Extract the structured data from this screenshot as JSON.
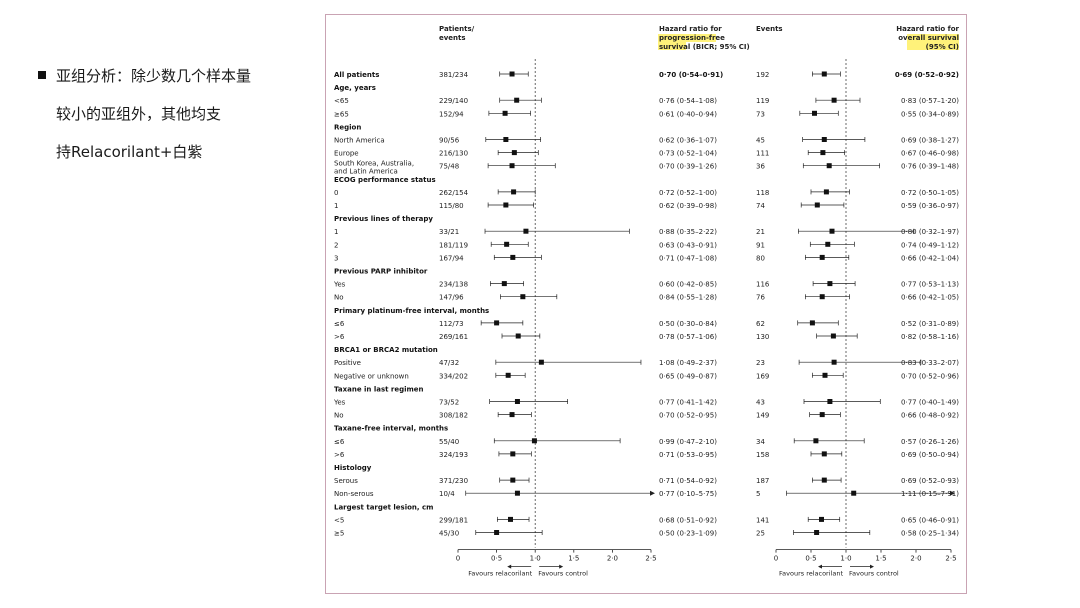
{
  "bullet": {
    "line1": "亚组分析：除少数几个样本量",
    "line2": "较小的亚组外，其他均支",
    "line3": "持Relacorilant+白紫"
  },
  "headers": {
    "patients_events": [
      "Patients/",
      "events"
    ],
    "pfs_hr": [
      "Hazard ratio for",
      "progression-free",
      "survival (BICR; 95% CI)"
    ],
    "events": "Events",
    "os_hr": [
      "Hazard ratio for",
      "overall survival",
      "(95% CI)"
    ]
  },
  "axis": {
    "ticks": [
      "0",
      "0·5",
      "1·0",
      "1·5",
      "2·0",
      "2·5"
    ],
    "favours_left": "Favours relacorilant",
    "favours_right": "Favours control"
  },
  "highlight_color": "#fff27a",
  "chart_data": [
    {
      "type": "forest",
      "xlim": [
        0,
        2.5
      ],
      "reference_line": 1.0,
      "rows": [
        {
          "label": "All patients",
          "bold": true,
          "n": "381/234",
          "hr": 0.7,
          "lo": 0.54,
          "hi": 0.91,
          "text": "0·70 (0·54–0·91)"
        },
        {
          "label": "Age, years",
          "header": true
        },
        {
          "label": "<65",
          "n": "229/140",
          "hr": 0.76,
          "lo": 0.54,
          "hi": 1.08,
          "text": "0·76 (0·54–1·08)"
        },
        {
          "label": "≥65",
          "n": "152/94",
          "hr": 0.61,
          "lo": 0.4,
          "hi": 0.94,
          "text": "0·61 (0·40–0·94)"
        },
        {
          "label": "Region",
          "header": true
        },
        {
          "label": "North America",
          "n": "90/56",
          "hr": 0.62,
          "lo": 0.36,
          "hi": 1.07,
          "text": "0·62 (0·36–1·07)"
        },
        {
          "label": "Europe",
          "n": "216/130",
          "hr": 0.73,
          "lo": 0.52,
          "hi": 1.04,
          "text": "0·73 (0·52–1·04)"
        },
        {
          "label": "South Korea, Australia,",
          "label2": "and Latin America",
          "n": "75/48",
          "hr": 0.7,
          "lo": 0.39,
          "hi": 1.26,
          "text": "0·70 (0·39–1·26)"
        },
        {
          "label": "ECOG performance status",
          "header": true
        },
        {
          "label": "0",
          "n": "262/154",
          "hr": 0.72,
          "lo": 0.52,
          "hi": 1.0,
          "text": "0·72 (0·52–1·00)"
        },
        {
          "label": "1",
          "n": "115/80",
          "hr": 0.62,
          "lo": 0.39,
          "hi": 0.98,
          "text": "0·62 (0·39–0·98)"
        },
        {
          "label": "Previous lines of therapy",
          "header": true
        },
        {
          "label": "1",
          "n": "33/21",
          "hr": 0.88,
          "lo": 0.35,
          "hi": 2.22,
          "text": "0·88 (0·35–2·22)"
        },
        {
          "label": "2",
          "n": "181/119",
          "hr": 0.63,
          "lo": 0.43,
          "hi": 0.91,
          "text": "0·63 (0·43–0·91)"
        },
        {
          "label": "3",
          "n": "167/94",
          "hr": 0.71,
          "lo": 0.47,
          "hi": 1.08,
          "text": "0·71 (0·47–1·08)"
        },
        {
          "label": "Previous PARP inhibitor",
          "header": true
        },
        {
          "label": "Yes",
          "n": "234/138",
          "hr": 0.6,
          "lo": 0.42,
          "hi": 0.85,
          "text": "0·60 (0·42–0·85)"
        },
        {
          "label": "No",
          "n": "147/96",
          "hr": 0.84,
          "lo": 0.55,
          "hi": 1.28,
          "text": "0·84 (0·55–1·28)"
        },
        {
          "label": "Primary platinum-free interval, months",
          "header": true
        },
        {
          "label": "≤6",
          "n": "112/73",
          "hr": 0.5,
          "lo": 0.3,
          "hi": 0.84,
          "text": "0·50 (0·30–0·84)"
        },
        {
          "label": ">6",
          "n": "269/161",
          "hr": 0.78,
          "lo": 0.57,
          "hi": 1.06,
          "text": "0·78 (0·57–1·06)"
        },
        {
          "label": "BRCA1 or BRCA2 mutation",
          "header": true
        },
        {
          "label": "Positive",
          "n": "47/32",
          "hr": 1.08,
          "lo": 0.49,
          "hi": 2.37,
          "text": "1·08 (0·49–2·37)"
        },
        {
          "label": "Negative or unknown",
          "n": "334/202",
          "hr": 0.65,
          "lo": 0.49,
          "hi": 0.87,
          "text": "0·65 (0·49–0·87)"
        },
        {
          "label": "Taxane in last regimen",
          "header": true
        },
        {
          "label": "Yes",
          "n": "73/52",
          "hr": 0.77,
          "lo": 0.41,
          "hi": 1.42,
          "text": "0·77 (0·41–1·42)"
        },
        {
          "label": "No",
          "n": "308/182",
          "hr": 0.7,
          "lo": 0.52,
          "hi": 0.95,
          "text": "0·70 (0·52–0·95)"
        },
        {
          "label": "Taxane-free interval, months",
          "header": true
        },
        {
          "label": "≤6",
          "n": "55/40",
          "hr": 0.99,
          "lo": 0.47,
          "hi": 2.1,
          "text": "0·99 (0·47–2·10)"
        },
        {
          "label": ">6",
          "n": "324/193",
          "hr": 0.71,
          "lo": 0.53,
          "hi": 0.95,
          "text": "0·71 (0·53–0·95)"
        },
        {
          "label": "Histology",
          "header": true
        },
        {
          "label": "Serous",
          "n": "371/230",
          "hr": 0.71,
          "lo": 0.54,
          "hi": 0.92,
          "text": "0·71 (0·54–0·92)"
        },
        {
          "label": "Non-serous",
          "n": "10/4",
          "hr": 0.77,
          "lo": 0.1,
          "hi": 5.75,
          "text": "0·77 (0·10–5·75)"
        },
        {
          "label": "Largest target lesion, cm",
          "header": true
        },
        {
          "label": "<5",
          "n": "299/181",
          "hr": 0.68,
          "lo": 0.51,
          "hi": 0.92,
          "text": "0·68 (0·51–0·92)"
        },
        {
          "label": "≥5",
          "n": "45/30",
          "hr": 0.5,
          "lo": 0.23,
          "hi": 1.09,
          "text": "0·50 (0·23–1·09)"
        }
      ]
    },
    {
      "type": "forest",
      "xlim": [
        0,
        2.5
      ],
      "reference_line": 1.0,
      "rows": [
        {
          "bold": true,
          "n": "192",
          "hr": 0.69,
          "lo": 0.52,
          "hi": 0.92,
          "text": "0·69 (0·52–0·92)"
        },
        {
          "header": true
        },
        {
          "n": "119",
          "hr": 0.83,
          "lo": 0.57,
          "hi": 1.2,
          "text": "0·83 (0·57–1·20)"
        },
        {
          "n": "73",
          "hr": 0.55,
          "lo": 0.34,
          "hi": 0.89,
          "text": "0·55 (0·34–0·89)"
        },
        {
          "header": true
        },
        {
          "n": "45",
          "hr": 0.69,
          "lo": 0.38,
          "hi": 1.27,
          "text": "0·69 (0·38–1·27)"
        },
        {
          "n": "111",
          "hr": 0.67,
          "lo": 0.46,
          "hi": 0.98,
          "text": "0·67 (0·46–0·98)"
        },
        {
          "n": "36",
          "hr": 0.76,
          "lo": 0.39,
          "hi": 1.48,
          "text": "0·76 (0·39–1·48)"
        },
        {
          "header": true
        },
        {
          "n": "118",
          "hr": 0.72,
          "lo": 0.5,
          "hi": 1.05,
          "text": "0·72 (0·50–1·05)"
        },
        {
          "n": "74",
          "hr": 0.59,
          "lo": 0.36,
          "hi": 0.97,
          "text": "0·59 (0·36–0·97)"
        },
        {
          "header": true
        },
        {
          "n": "21",
          "hr": 0.8,
          "lo": 0.32,
          "hi": 1.97,
          "text": "0·80 (0·32–1·97)"
        },
        {
          "n": "91",
          "hr": 0.74,
          "lo": 0.49,
          "hi": 1.12,
          "text": "0·74 (0·49–1·12)"
        },
        {
          "n": "80",
          "hr": 0.66,
          "lo": 0.42,
          "hi": 1.04,
          "text": "0·66 (0·42–1·04)"
        },
        {
          "header": true
        },
        {
          "n": "116",
          "hr": 0.77,
          "lo": 0.53,
          "hi": 1.13,
          "text": "0·77 (0·53–1·13)"
        },
        {
          "n": "76",
          "hr": 0.66,
          "lo": 0.42,
          "hi": 1.05,
          "text": "0·66 (0·42–1·05)"
        },
        {
          "header": true
        },
        {
          "n": "62",
          "hr": 0.52,
          "lo": 0.31,
          "hi": 0.89,
          "text": "0·52 (0·31–0·89)"
        },
        {
          "n": "130",
          "hr": 0.82,
          "lo": 0.58,
          "hi": 1.16,
          "text": "0·82 (0·58–1·16)"
        },
        {
          "header": true
        },
        {
          "n": "23",
          "hr": 0.83,
          "lo": 0.33,
          "hi": 2.07,
          "text": "0·83 (0·33–2·07)"
        },
        {
          "n": "169",
          "hr": 0.7,
          "lo": 0.52,
          "hi": 0.96,
          "text": "0·70 (0·52–0·96)"
        },
        {
          "header": true
        },
        {
          "n": "43",
          "hr": 0.77,
          "lo": 0.4,
          "hi": 1.49,
          "text": "0·77 (0·40–1·49)"
        },
        {
          "n": "149",
          "hr": 0.66,
          "lo": 0.48,
          "hi": 0.92,
          "text": "0·66 (0·48–0·92)"
        },
        {
          "header": true
        },
        {
          "n": "34",
          "hr": 0.57,
          "lo": 0.26,
          "hi": 1.26,
          "text": "0·57 (0·26–1·26)"
        },
        {
          "n": "158",
          "hr": 0.69,
          "lo": 0.5,
          "hi": 0.94,
          "text": "0·69 (0·50–0·94)"
        },
        {
          "header": true
        },
        {
          "n": "187",
          "hr": 0.69,
          "lo": 0.52,
          "hi": 0.93,
          "text": "0·69 (0·52–0·93)"
        },
        {
          "n": "5",
          "hr": 1.11,
          "lo": 0.15,
          "hi": 7.91,
          "text": "1·11 (0·15–7·91)"
        },
        {
          "header": true
        },
        {
          "n": "141",
          "hr": 0.65,
          "lo": 0.46,
          "hi": 0.91,
          "text": "0·65 (0·46–0·91)"
        },
        {
          "n": "25",
          "hr": 0.58,
          "lo": 0.25,
          "hi": 1.34,
          "text": "0·58 (0·25–1·34)"
        }
      ]
    }
  ]
}
